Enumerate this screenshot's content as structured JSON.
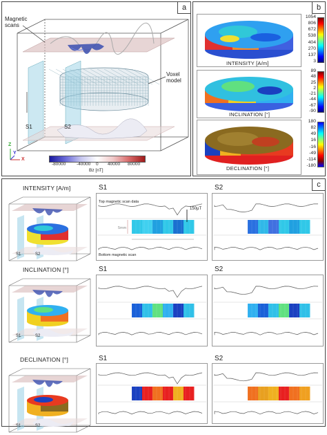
{
  "panels": {
    "a": {
      "tag": "a",
      "labels": {
        "magnetic_scans": "Magnetic\nscans",
        "voxel_model": "Voxel\nmodel",
        "s1": "S1",
        "s2": "S2",
        "axis_z": "Z",
        "axis_y": "Y",
        "axis_x": "X"
      },
      "colorbar": {
        "ticks": [
          "-80000",
          "-40000",
          "0",
          "40000",
          "80000"
        ],
        "unit": "Bz [nT]"
      }
    },
    "b": {
      "tag": "b",
      "maps": [
        {
          "title": "INTENSITY [A/m]",
          "ticks": [
            "1054",
            "806",
            "672",
            "538",
            "404",
            "270",
            "137",
            "3"
          ]
        },
        {
          "title": "INCLINATION [°]",
          "ticks": [
            "89",
            "48",
            "25",
            "2",
            "-21",
            "-44",
            "-67",
            "-90"
          ]
        },
        {
          "title": "DECLINATION [°]",
          "ticks": [
            "180",
            "82",
            "49",
            "16",
            "-16",
            "-49",
            "-114",
            "-180"
          ]
        }
      ]
    },
    "c": {
      "tag": "c",
      "rows": [
        {
          "title": "INTENSITY [A/m]",
          "s1": "S1",
          "s2": "S2"
        },
        {
          "title": "INCLINATION [°]",
          "s1": "S1",
          "s2": "S2"
        },
        {
          "title": "DECLINATION [°]",
          "s1": "S1",
          "s2": "S2"
        }
      ],
      "annotations": {
        "top_scan": "Top magnetic scan data",
        "scale": "150µT",
        "size": "5mm",
        "bottom_scan": "Bottom magnetic scan"
      },
      "mini_s1": "S1",
      "mini_s2": "S2"
    }
  },
  "colors": {
    "diverging": [
      "#1a1aa0",
      "#6a6ad8",
      "#c8c8f0",
      "#ffffff",
      "#f0c8c8",
      "#d86a6a",
      "#a01a1a"
    ],
    "jet": [
      "#00007f",
      "#0000ff",
      "#007fff",
      "#00ffff",
      "#7fff7f",
      "#ffff00",
      "#ff7f00",
      "#ff0000",
      "#7f0000"
    ]
  }
}
